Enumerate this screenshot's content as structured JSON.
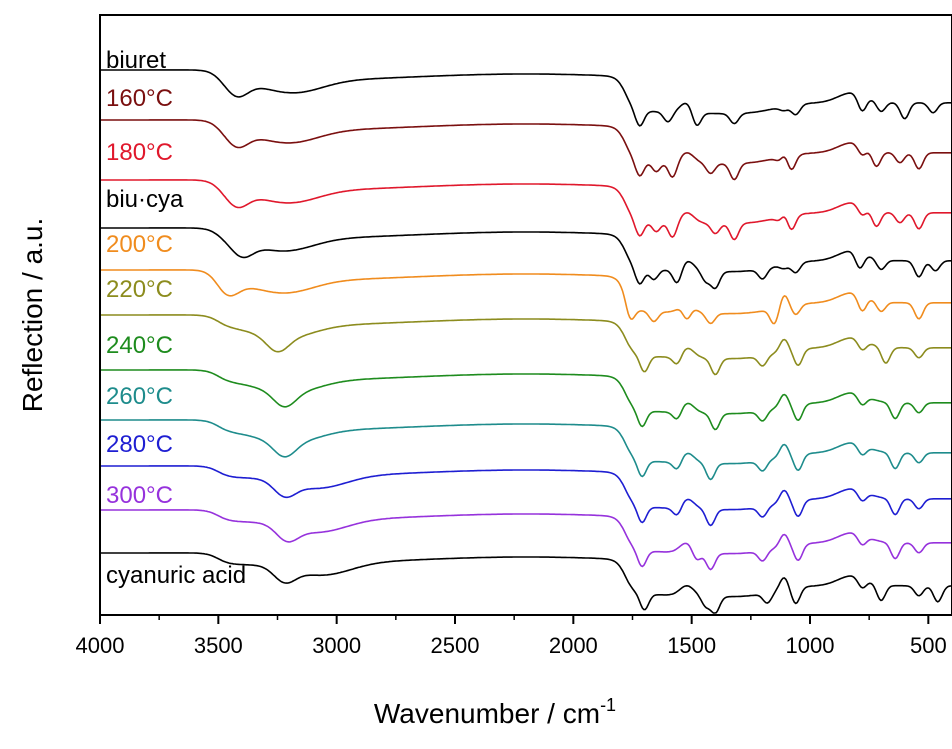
{
  "chart_data": {
    "type": "line",
    "title": "",
    "xlabel": "Wavenumber / cm",
    "xlabel_sup": "-1",
    "ylabel": "Reflection / a.u.",
    "xlim": [
      4000,
      400
    ],
    "x_ticks": [
      4000,
      3500,
      3000,
      2500,
      2000,
      1500,
      1000,
      500
    ],
    "x_tick_labels": [
      "4000",
      "3500",
      "3000",
      "2500",
      "2000",
      "1500",
      "1000",
      "500"
    ],
    "grid": false,
    "legend": "inline labels at left of each trace",
    "series": [
      {
        "name": "biuret",
        "color": "#000000",
        "label_pos": [
          4000,
          68
        ]
      },
      {
        "name": "160°C",
        "color": "#7a0f0f",
        "label_pos": [
          4000,
          106
        ]
      },
      {
        "name": "180°C",
        "color": "#e0182c",
        "label_pos": [
          4000,
          160
        ]
      },
      {
        "name": "biu·cya",
        "color": "#000000",
        "label_pos": [
          4000,
          207
        ]
      },
      {
        "name": "200°C",
        "color": "#f08c1e",
        "label_pos": [
          4000,
          252
        ]
      },
      {
        "name": "220°C",
        "color": "#8c8c1e",
        "label_pos": [
          4000,
          297
        ]
      },
      {
        "name": "240°C",
        "color": "#1e8c1e",
        "label_pos": [
          4000,
          353
        ]
      },
      {
        "name": "260°C",
        "color": "#1e8c8c",
        "label_pos": [
          4000,
          404
        ]
      },
      {
        "name": "280°C",
        "color": "#1e1ed2",
        "label_pos": [
          4000,
          452
        ]
      },
      {
        "name": "300°C",
        "color": "#9632dc",
        "label_pos": [
          4000,
          503
        ]
      },
      {
        "name": "cyanuric acid",
        "color": "#000000",
        "label_pos": [
          4000,
          583
        ]
      }
    ]
  }
}
